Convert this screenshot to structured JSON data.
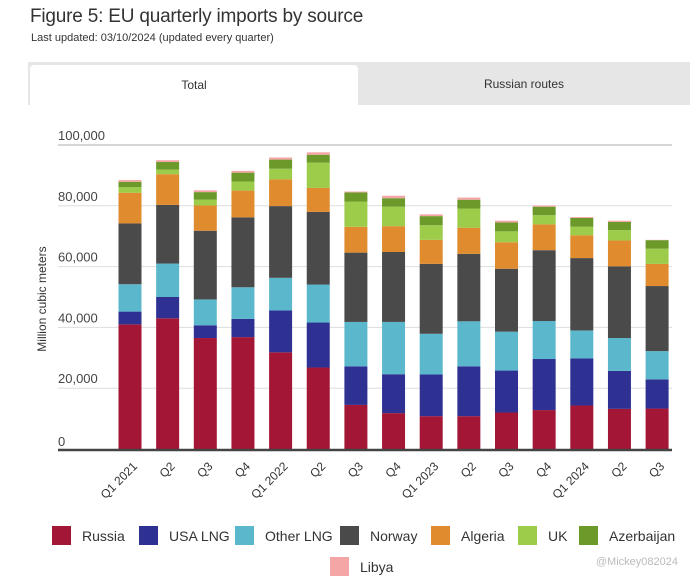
{
  "header": {
    "title": "Figure 5: EU quarterly imports by source",
    "subtitle": "Last updated: 03/10/2024 (updated every quarter)"
  },
  "tabs": [
    {
      "label": "Total",
      "active": true
    },
    {
      "label": "Russian routes",
      "active": false
    }
  ],
  "watermark": "@Mickey082024",
  "chart_data": {
    "type": "bar",
    "stacked": true,
    "title": "Figure 5: EU quarterly imports by source",
    "xlabel": "",
    "ylabel": "Million cubic meters",
    "ylim": [
      0,
      100000
    ],
    "yticks": [
      0,
      20000,
      40000,
      60000,
      80000,
      100000
    ],
    "ytick_labels": [
      "0",
      "20,000",
      "40,000",
      "60,000",
      "80,000",
      "100,000"
    ],
    "grid": true,
    "legend_position": "bottom",
    "categories": [
      "Q1 2021",
      "Q2",
      "Q3",
      "Q4",
      "Q1 2022",
      "Q2",
      "Q3",
      "Q4",
      "Q1 2023",
      "Q2",
      "Q3",
      "Q4",
      "Q1 2024",
      "Q2",
      "Q3"
    ],
    "series": [
      {
        "name": "Russia",
        "color": "#a31636",
        "values": [
          41000,
          43000,
          36500,
          36800,
          31800,
          26800,
          14500,
          11800,
          10800,
          10800,
          12000,
          12800,
          14300,
          13200,
          13300
        ]
      },
      {
        "name": "USA LNG",
        "color": "#2e3192",
        "values": [
          4200,
          7000,
          4200,
          6000,
          13800,
          14800,
          12700,
          12800,
          13700,
          16400,
          13800,
          16800,
          15500,
          12500,
          9600
        ]
      },
      {
        "name": "Other LNG",
        "color": "#5bb8cc",
        "values": [
          9000,
          11000,
          8500,
          10400,
          10700,
          12500,
          14600,
          17200,
          13400,
          14800,
          12800,
          12500,
          9200,
          10800,
          9300
        ]
      },
      {
        "name": "Norway",
        "color": "#4a4a4a",
        "values": [
          20000,
          19300,
          22600,
          23000,
          23600,
          23900,
          22800,
          23000,
          23000,
          22200,
          20700,
          23300,
          23800,
          23600,
          21400
        ]
      },
      {
        "name": "Algeria",
        "color": "#e08b2e",
        "values": [
          10100,
          10100,
          8300,
          8800,
          8800,
          7900,
          8500,
          8500,
          7900,
          8600,
          8700,
          8500,
          7500,
          8500,
          7300
        ]
      },
      {
        "name": "UK",
        "color": "#9ccc4a",
        "values": [
          1800,
          1500,
          1900,
          3000,
          3500,
          8300,
          8300,
          6400,
          4800,
          6300,
          3600,
          3000,
          2800,
          3400,
          5000
        ]
      },
      {
        "name": "Azerbaijan",
        "color": "#6b9a2a",
        "values": [
          1800,
          2500,
          2500,
          2900,
          3000,
          2600,
          3000,
          2800,
          3000,
          2900,
          2900,
          2800,
          2900,
          2700,
          2800
        ]
      },
      {
        "name": "Libya",
        "color": "#f4a6a6",
        "values": [
          600,
          600,
          600,
          600,
          700,
          800,
          300,
          800,
          600,
          700,
          600,
          400,
          300,
          400,
          100
        ]
      }
    ]
  }
}
